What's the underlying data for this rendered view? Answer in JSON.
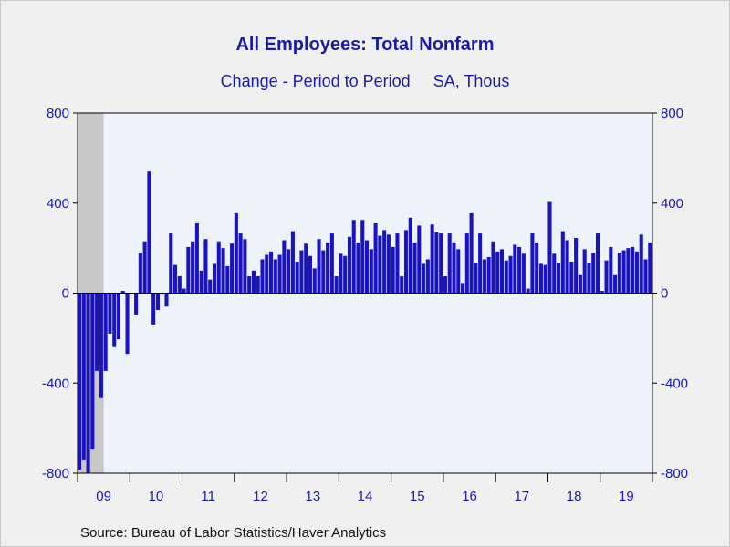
{
  "chart_data": {
    "type": "bar",
    "title": "All Employees: Total Nonfarm",
    "subtitle_left": "Change - Period to Period",
    "subtitle_right": "SA, Thous",
    "source": "Source:  Bureau of Labor Statistics/Haver Analytics",
    "ylim": [
      -800,
      800
    ],
    "yticks": [
      800,
      400,
      0,
      -400,
      -800
    ],
    "x_start": "2009-01",
    "x_end": "2019-12",
    "year_labels": [
      "09",
      "10",
      "11",
      "12",
      "13",
      "14",
      "15",
      "16",
      "17",
      "18",
      "19"
    ],
    "recession_shading": {
      "from": "2009-01",
      "to": "2009-06"
    },
    "series": [
      {
        "values": [
          -784,
          -743,
          -800,
          -695,
          -346,
          -467,
          -346,
          -180,
          -240,
          -205,
          10,
          -270,
          0,
          -95,
          180,
          230,
          540,
          -140,
          -75,
          -5,
          -60,
          265,
          125,
          75,
          20,
          205,
          230,
          310,
          100,
          240,
          60,
          130,
          230,
          200,
          120,
          220,
          355,
          265,
          240,
          75,
          100,
          75,
          150,
          170,
          185,
          150,
          170,
          235,
          195,
          275,
          140,
          190,
          220,
          165,
          110,
          240,
          190,
          225,
          265,
          75,
          175,
          165,
          250,
          325,
          225,
          325,
          235,
          195,
          310,
          255,
          280,
          260,
          205,
          265,
          75,
          280,
          335,
          225,
          300,
          130,
          150,
          305,
          270,
          265,
          75,
          265,
          225,
          195,
          45,
          265,
          355,
          135,
          265,
          150,
          160,
          230,
          185,
          195,
          145,
          165,
          215,
          205,
          175,
          20,
          265,
          225,
          130,
          125,
          405,
          175,
          135,
          275,
          235,
          140,
          245,
          80,
          195,
          135,
          180,
          265,
          10,
          145,
          205,
          80,
          180,
          190,
          200,
          205,
          185,
          260,
          150,
          225
        ]
      }
    ]
  }
}
